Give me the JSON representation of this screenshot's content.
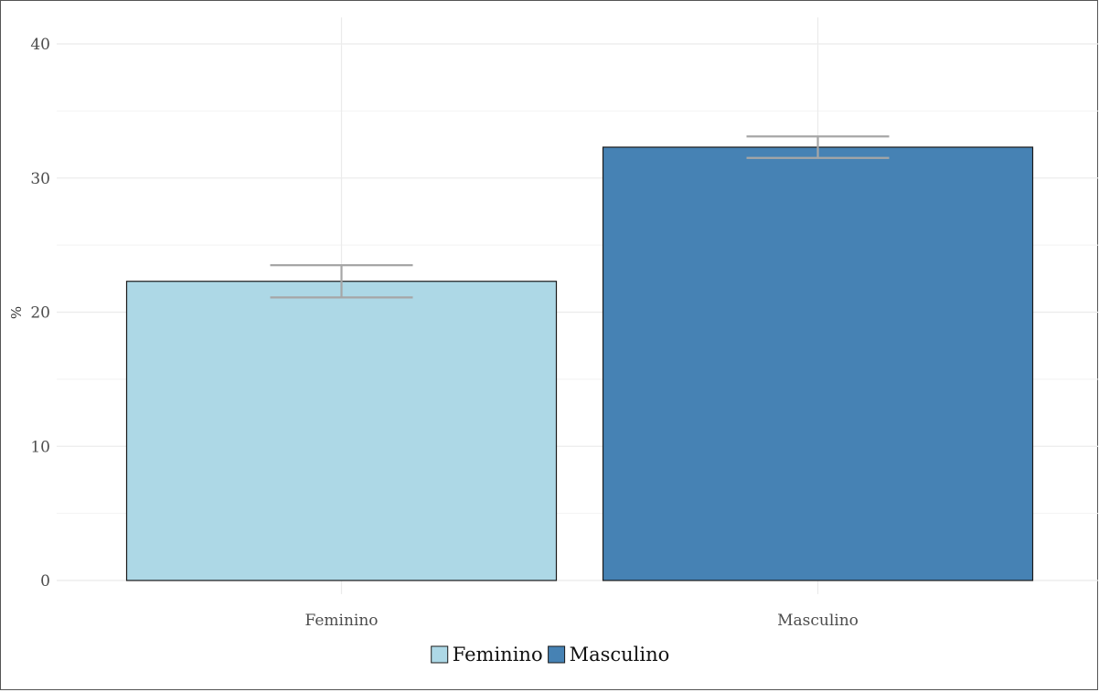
{
  "chart_data": {
    "type": "bar",
    "categories": [
      "Feminino",
      "Masculino"
    ],
    "values": [
      22.3,
      32.3
    ],
    "error_bars": [
      {
        "low": 21.1,
        "high": 23.5
      },
      {
        "low": 31.5,
        "high": 33.1
      }
    ],
    "colors": [
      "#add8e6",
      "#4682b4"
    ],
    "edge_color": "#1a1a1a",
    "error_bar_color": "#a6a6a6",
    "ylabel": "%",
    "ylim": [
      0,
      40
    ],
    "y_ticks": [
      0,
      10,
      20,
      30,
      40
    ],
    "grid": true,
    "legend": {
      "position": "bottom",
      "entries": [
        "Feminino",
        "Masculino"
      ]
    }
  }
}
